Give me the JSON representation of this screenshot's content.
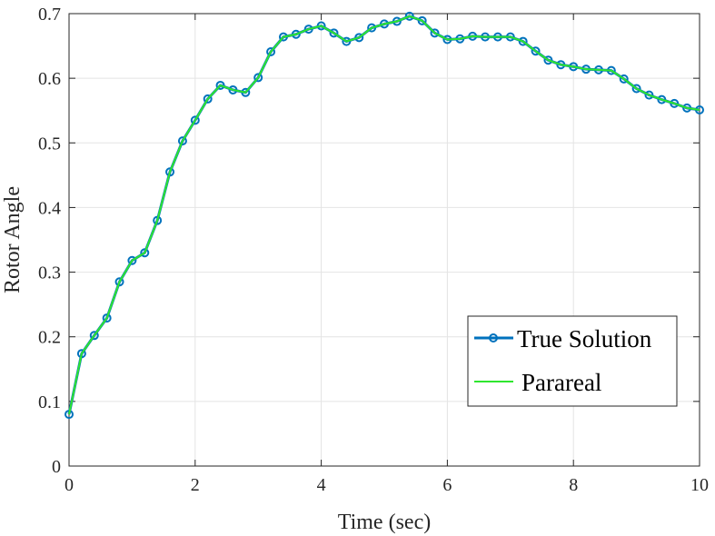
{
  "chart_data": {
    "type": "line",
    "xlabel": "Time (sec)",
    "ylabel": "Rotor Angle",
    "xlim": [
      0,
      10
    ],
    "ylim": [
      0,
      0.7
    ],
    "xticks": [
      0,
      2,
      4,
      6,
      8,
      10
    ],
    "xtick_labels": [
      "0",
      "2",
      "4",
      "6",
      "8",
      "10"
    ],
    "yticks": [
      0,
      0.1,
      0.2,
      0.3,
      0.4,
      0.5,
      0.6,
      0.7
    ],
    "ytick_labels": [
      "0",
      "0.1",
      "0.2",
      "0.3",
      "0.4",
      "0.5",
      "0.6",
      "0.7"
    ],
    "grid": true,
    "legend_position": "bottom-right",
    "x": [
      0,
      0.2,
      0.4,
      0.6,
      0.8,
      1.0,
      1.2,
      1.4,
      1.6,
      1.8,
      2.0,
      2.2,
      2.4,
      2.6,
      2.8,
      3.0,
      3.2,
      3.4,
      3.6,
      3.8,
      4.0,
      4.2,
      4.4,
      4.6,
      4.8,
      5.0,
      5.2,
      5.4,
      5.6,
      5.8,
      6.0,
      6.2,
      6.4,
      6.6,
      6.8,
      7.0,
      7.2,
      7.4,
      7.6,
      7.8,
      8.0,
      8.2,
      8.4,
      8.6,
      8.8,
      9.0,
      9.2,
      9.4,
      9.6,
      9.8,
      10.0
    ],
    "series": [
      {
        "name": "True Solution",
        "color": "#0072BD",
        "marker": "circle",
        "values": [
          0.08,
          0.174,
          0.202,
          0.229,
          0.285,
          0.318,
          0.33,
          0.38,
          0.455,
          0.503,
          0.535,
          0.568,
          0.589,
          0.582,
          0.578,
          0.601,
          0.641,
          0.664,
          0.668,
          0.676,
          0.681,
          0.67,
          0.657,
          0.663,
          0.678,
          0.684,
          0.688,
          0.696,
          0.689,
          0.67,
          0.66,
          0.661,
          0.665,
          0.664,
          0.664,
          0.664,
          0.657,
          0.642,
          0.628,
          0.621,
          0.618,
          0.614,
          0.613,
          0.612,
          0.599,
          0.584,
          0.574,
          0.567,
          0.561,
          0.554,
          0.551
        ]
      },
      {
        "name": "Parareal",
        "color": "#2EE62E",
        "marker": "none",
        "values": [
          0.08,
          0.174,
          0.202,
          0.229,
          0.285,
          0.318,
          0.33,
          0.38,
          0.455,
          0.503,
          0.535,
          0.568,
          0.589,
          0.582,
          0.578,
          0.601,
          0.641,
          0.664,
          0.668,
          0.676,
          0.681,
          0.67,
          0.657,
          0.663,
          0.678,
          0.684,
          0.688,
          0.696,
          0.689,
          0.67,
          0.66,
          0.661,
          0.665,
          0.664,
          0.664,
          0.664,
          0.657,
          0.642,
          0.628,
          0.621,
          0.618,
          0.614,
          0.613,
          0.612,
          0.599,
          0.584,
          0.574,
          0.567,
          0.561,
          0.554,
          0.551
        ]
      }
    ]
  }
}
